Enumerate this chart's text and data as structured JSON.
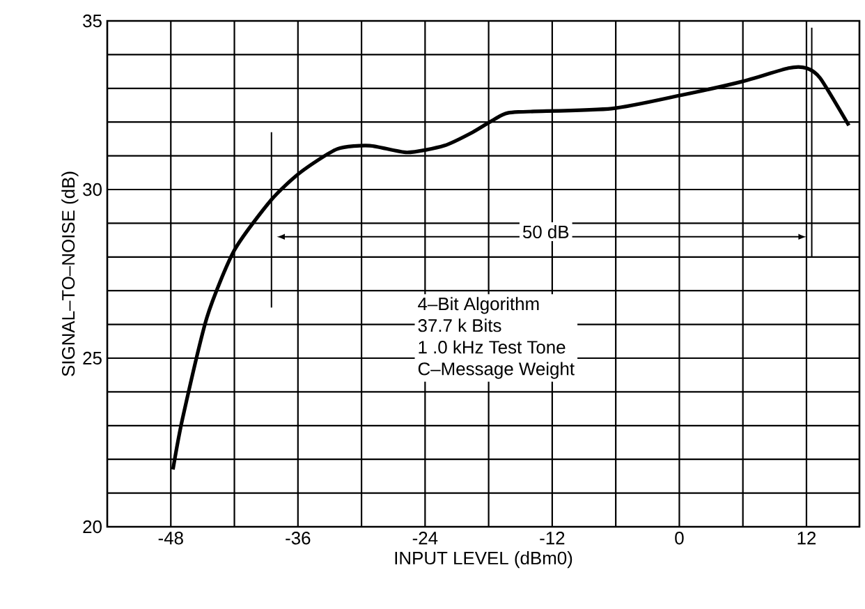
{
  "chart_data": {
    "type": "line",
    "xlabel": "INPUT LEVEL (dBm0)",
    "ylabel": "SIGNAL–TO–NOISE (dB)",
    "x": [
      -47.8,
      -46.9,
      -44.6,
      -42.0,
      -38.5,
      -35.8,
      -32.3,
      -29.2,
      -25.7,
      -22.2,
      -19.5,
      -16.8,
      -15.2,
      -6.4,
      0.2,
      5.9,
      10.3,
      12,
      13.3,
      16
    ],
    "series": [
      {
        "color": "#000000",
        "values": [
          21.7,
          23.2,
          26.2,
          28.2,
          29.7,
          30.5,
          31.2,
          31.3,
          31.1,
          31.3,
          31.7,
          32.2,
          32.3,
          32.4,
          32.8,
          33.2,
          33.6,
          33.6,
          33.3,
          31.9
        ]
      }
    ],
    "xlim": [
      -54,
      17
    ],
    "ylim": [
      20,
      35
    ],
    "xticks": [
      -48,
      -36,
      -24,
      -12,
      0,
      12
    ],
    "yticks": [
      20,
      25,
      30,
      35
    ],
    "grid": true,
    "marker": "none",
    "line_style": "solid",
    "annotations": [
      "50 dB",
      "4–Bit Algorithm",
      "37.7 k Bits",
      "1 .0 kHz Test Tone",
      "C–Message Weight"
    ]
  }
}
